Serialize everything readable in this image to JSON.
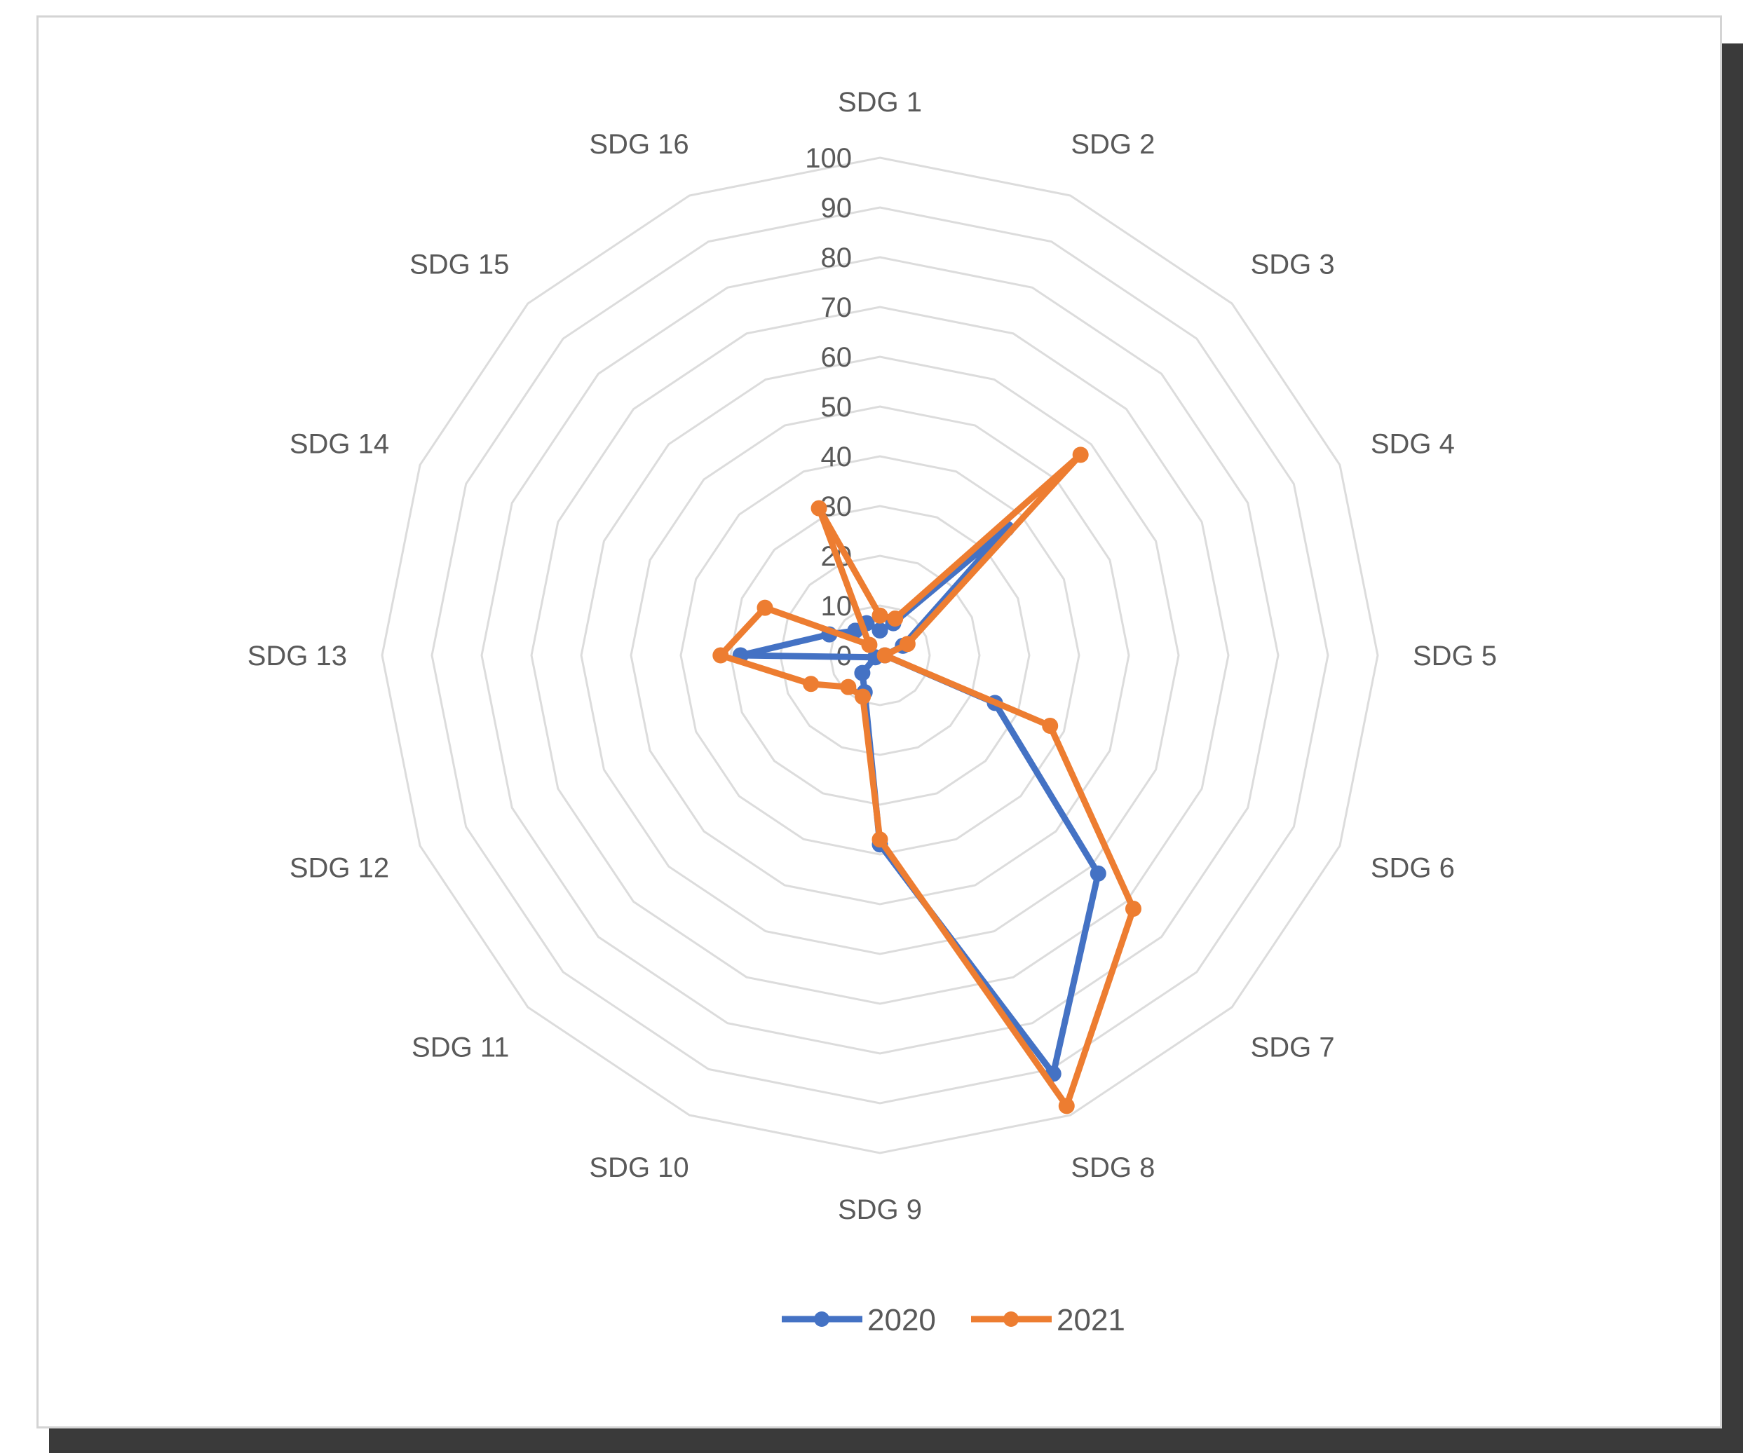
{
  "chart_data": {
    "type": "radar",
    "categories": [
      "SDG 1",
      "SDG 2",
      "SDG 3",
      "SDG 4",
      "SDG 5",
      "SDG 6",
      "SDG 7",
      "SDG 8",
      "SDG 9",
      "SDG 10",
      "SDG 11",
      "SDG 12",
      "SDG 13",
      "SDG 14",
      "SDG 15",
      "SDG 16"
    ],
    "radial_ticks": [
      "0",
      "10",
      "20",
      "30",
      "40",
      "50",
      "60",
      "70",
      "80",
      "90",
      "100"
    ],
    "rlim": [
      0,
      100
    ],
    "grid": true,
    "legend_position": "bottom",
    "series": [
      {
        "name": "2020",
        "color": "#4472C4",
        "values": [
          5,
          7,
          36,
          5,
          1,
          25,
          62,
          91,
          38,
          8,
          5,
          1,
          28,
          11,
          7,
          7
        ]
      },
      {
        "name": "2021",
        "color": "#ED7D31",
        "values": [
          8,
          8,
          57,
          6,
          1,
          37,
          72,
          98,
          37,
          9,
          9,
          15,
          32,
          25,
          3,
          32
        ]
      }
    ]
  }
}
